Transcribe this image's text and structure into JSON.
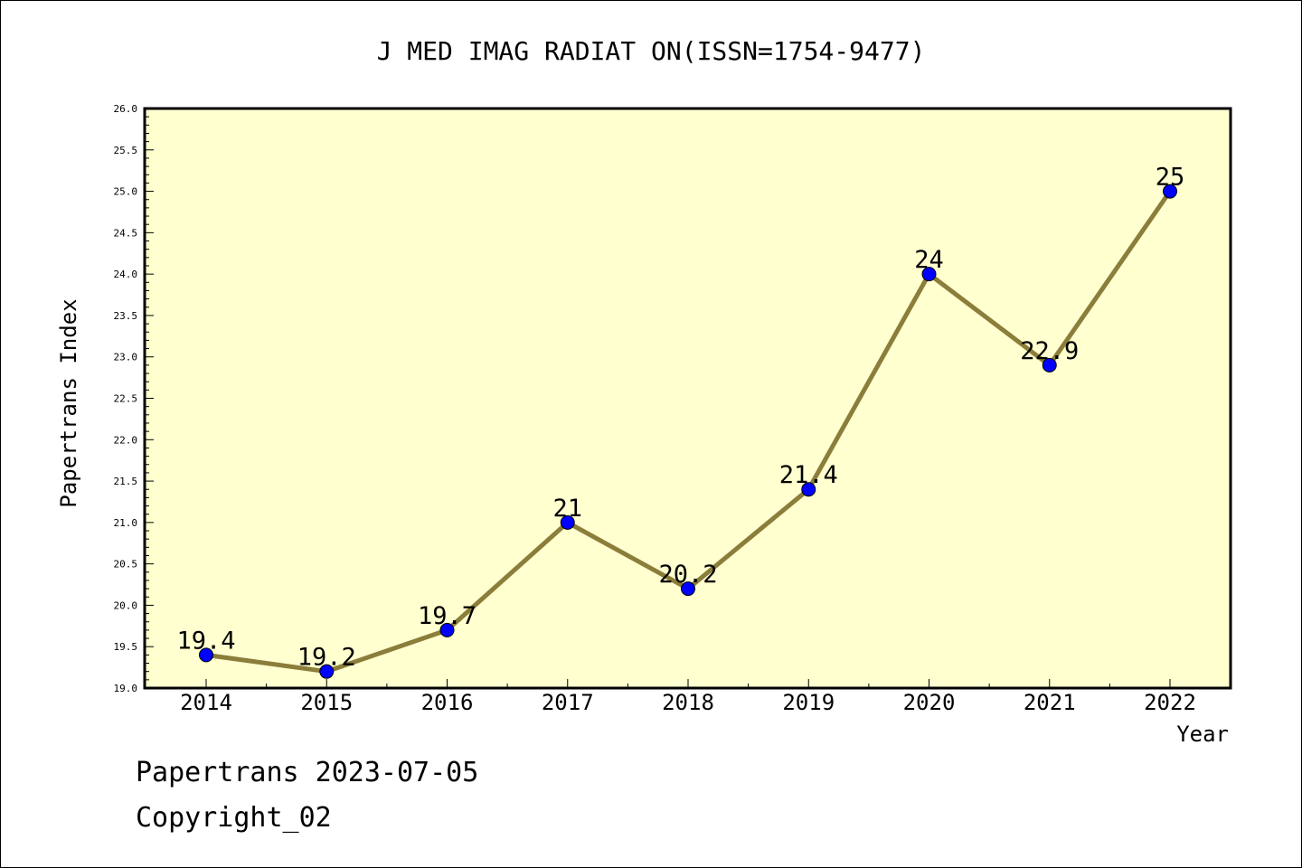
{
  "chart_data": {
    "type": "line",
    "title": "J MED IMAG RADIAT ON(ISSN=1754-9477)",
    "xlabel": "Year",
    "ylabel": "Papertrans Index",
    "categories": [
      "2014",
      "2015",
      "2016",
      "2017",
      "2018",
      "2019",
      "2020",
      "2021",
      "2022"
    ],
    "values": [
      19.4,
      19.2,
      19.7,
      21.0,
      20.2,
      21.4,
      24.0,
      22.9,
      25.0
    ],
    "data_labels": [
      "19.4",
      "19.2",
      "19.7",
      "21",
      "20.2",
      "21.4",
      "24",
      "22.9",
      "25"
    ],
    "ylim": [
      19.0,
      26.0
    ],
    "yticks": [
      "19.0",
      "19.5",
      "20.0",
      "20.5",
      "21.0",
      "21.5",
      "22.0",
      "22.5",
      "23.0",
      "23.5",
      "24.0",
      "24.5",
      "25.0",
      "25.5",
      "26.0"
    ],
    "grid": false,
    "line_color": "#8b7d3a",
    "marker_color": "#0000ff",
    "plot_background": "#ffffd0"
  },
  "footer": {
    "line1": "Papertrans 2023-07-05",
    "line2": "Copyright_02"
  }
}
